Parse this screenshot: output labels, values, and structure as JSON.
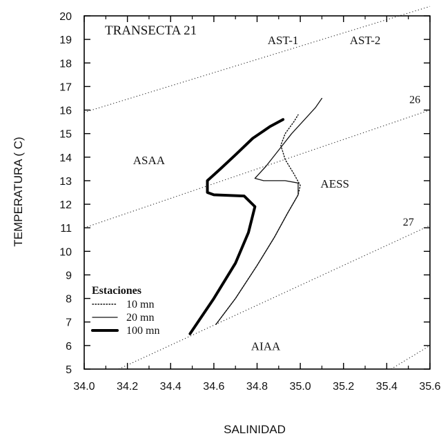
{
  "chart_data": {
    "type": "line",
    "title": "TRANSECTA 21",
    "xlabel": "SALINIDAD",
    "ylabel": "TEMPERATURA ( C)",
    "xlim": [
      34.0,
      35.6
    ],
    "ylim": [
      5,
      20
    ],
    "x_ticks": [
      "34.0",
      "34.2",
      "34.4",
      "34.6",
      "34.8",
      "35.0",
      "35.2",
      "35.4",
      "35.6"
    ],
    "y_ticks": [
      "5",
      "6",
      "7",
      "8",
      "9",
      "10",
      "11",
      "12",
      "13",
      "14",
      "15",
      "16",
      "17",
      "18",
      "19",
      "20"
    ],
    "legend": {
      "title": "Estaciones",
      "placement": "lower-left"
    },
    "series": [
      {
        "name": "10 mn",
        "style": "dotted",
        "points": [
          [
            34.61,
            6.9
          ],
          [
            34.7,
            8.0
          ],
          [
            34.8,
            9.4
          ],
          [
            34.88,
            10.6
          ],
          [
            34.94,
            11.6
          ],
          [
            34.99,
            12.4
          ],
          [
            35.0,
            12.8
          ],
          [
            34.97,
            13.3
          ],
          [
            34.93,
            13.9
          ],
          [
            34.91,
            14.5
          ],
          [
            34.93,
            15.0
          ],
          [
            34.97,
            15.5
          ],
          [
            34.99,
            15.8
          ]
        ]
      },
      {
        "name": "20 mn",
        "style": "solid",
        "points": [
          [
            34.61,
            6.9
          ],
          [
            34.7,
            8.0
          ],
          [
            34.8,
            9.4
          ],
          [
            34.88,
            10.6
          ],
          [
            34.94,
            11.6
          ],
          [
            34.99,
            12.4
          ],
          [
            34.99,
            12.9
          ],
          [
            34.93,
            13.0
          ],
          [
            34.83,
            13.0
          ],
          [
            34.79,
            13.1
          ],
          [
            34.84,
            13.6
          ],
          [
            34.9,
            14.3
          ],
          [
            34.96,
            15.0
          ],
          [
            35.02,
            15.6
          ],
          [
            35.07,
            16.1
          ],
          [
            35.1,
            16.5
          ]
        ]
      },
      {
        "name": "100 mn",
        "style": "thick",
        "points": [
          [
            34.49,
            6.5
          ],
          [
            34.6,
            8.0
          ],
          [
            34.7,
            9.5
          ],
          [
            34.76,
            10.8
          ],
          [
            34.79,
            11.9
          ],
          [
            34.74,
            12.35
          ],
          [
            34.6,
            12.4
          ],
          [
            34.57,
            12.5
          ],
          [
            34.57,
            13.0
          ],
          [
            34.63,
            13.5
          ],
          [
            34.7,
            14.1
          ],
          [
            34.78,
            14.8
          ],
          [
            34.86,
            15.3
          ],
          [
            34.92,
            15.6
          ]
        ]
      }
    ],
    "isopycnals": [
      {
        "label": "",
        "points": [
          [
            34.0,
            15.9
          ],
          [
            35.6,
            20.4
          ]
        ]
      },
      {
        "label": "26",
        "points": [
          [
            34.0,
            11.0
          ],
          [
            35.6,
            16.0
          ]
        ]
      },
      {
        "label": "27",
        "points": [
          [
            34.16,
            5.0
          ],
          [
            35.6,
            11.1
          ]
        ]
      },
      {
        "label": "",
        "points": [
          [
            35.42,
            5.0
          ],
          [
            35.6,
            6.0
          ]
        ]
      }
    ],
    "water_masses": [
      {
        "label": "AST-1",
        "x": 34.92,
        "y": 18.8
      },
      {
        "label": "AST-2",
        "x": 35.3,
        "y": 18.8
      },
      {
        "label": "ASAA",
        "x": 34.3,
        "y": 13.7
      },
      {
        "label": "AESS",
        "x": 35.16,
        "y": 12.7
      },
      {
        "label": "AIAA",
        "x": 34.84,
        "y": 5.8
      }
    ],
    "isopycnal_labels": [
      {
        "label": "26",
        "x": 35.53,
        "y": 16.3
      },
      {
        "label": "27",
        "x": 35.5,
        "y": 11.1
      }
    ]
  }
}
